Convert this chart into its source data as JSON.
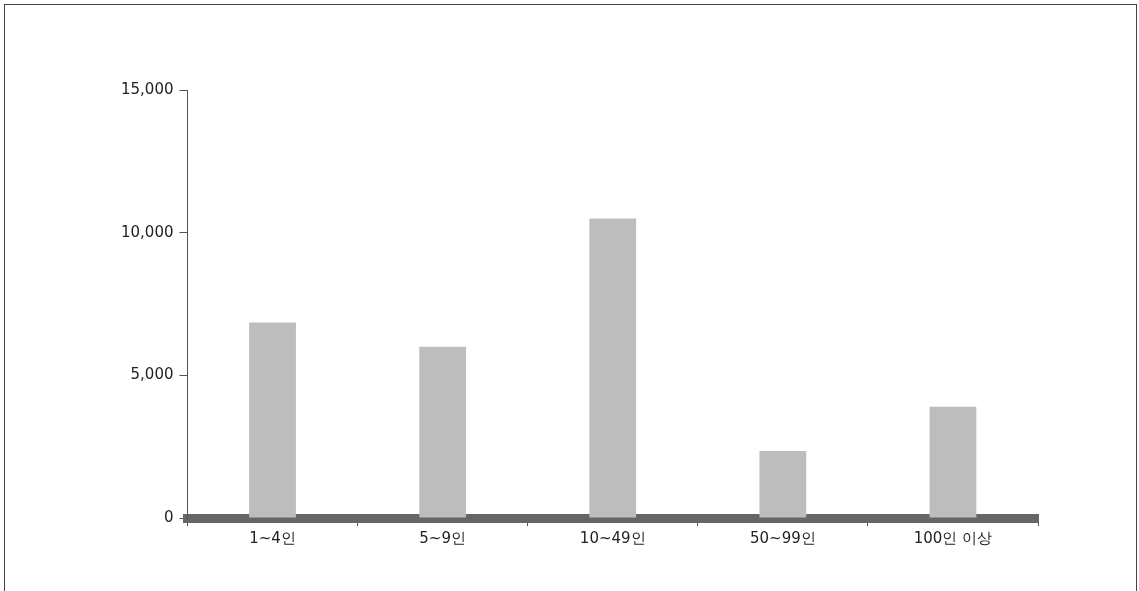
{
  "chart_data": {
    "type": "bar",
    "categories": [
      "1~4인",
      "5~9인",
      "10~49인",
      "50~99인",
      "100인 이상"
    ],
    "values": [
      6850,
      6000,
      10500,
      2350,
      3900
    ],
    "color": "#bdbdbd",
    "ylim": [
      0,
      15000
    ],
    "yticks": [
      {
        "value": 0,
        "label": "0"
      },
      {
        "value": 5000,
        "label": "5,000"
      },
      {
        "value": 10000,
        "label": "10,000"
      },
      {
        "value": 15000,
        "label": "15,000"
      }
    ],
    "grid": false,
    "legend": false
  }
}
